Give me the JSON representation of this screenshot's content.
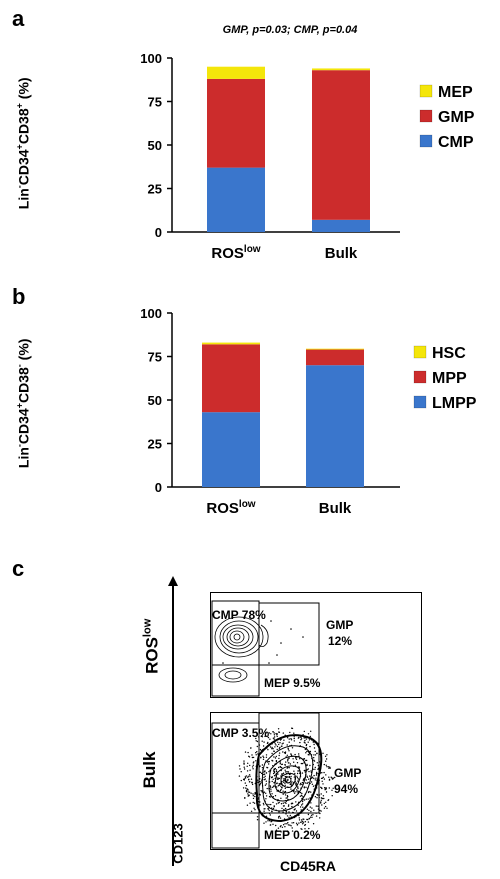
{
  "panel_a": {
    "letter": "a",
    "annotation": "GMP, p=0.03;  CMP, p=0.04",
    "ylabel_parts": [
      "Lin",
      "-",
      "CD34",
      "+",
      "CD38",
      "+",
      " (%)"
    ]
  },
  "panel_b": {
    "letter": "b",
    "ylabel_parts": [
      "Lin",
      "-",
      "CD34",
      "+",
      "CD38",
      "-",
      " (%)"
    ]
  },
  "panel_c": {
    "letter": "c",
    "row_labels": {
      "top_main": "ROS",
      "top_sup": "low",
      "bottom": "Bulk"
    },
    "top_plot": {
      "cmp": "CMP 78%",
      "gmp_line1": "GMP",
      "gmp_line2": "12%",
      "mep": "MEP 9.5%"
    },
    "bottom_plot": {
      "cmp": "CMP 3.5%",
      "gmp_line1": "GMP",
      "gmp_line2": "94%",
      "mep": "MEP 0.2%"
    },
    "y_axis_title": "CD123",
    "x_axis_title": "CD45RA"
  },
  "chart_data": [
    {
      "type": "bar",
      "stacked": true,
      "title": "",
      "annotation": "GMP, p=0.03;  CMP, p=0.04",
      "ylabel": "Lin-CD34+CD38+ (%)",
      "xlabel": "",
      "categories": [
        {
          "main": "ROS",
          "sup": "low"
        },
        {
          "main": "Bulk",
          "sup": ""
        }
      ],
      "ylim": [
        0,
        100
      ],
      "yticks": [
        "0",
        "25",
        "50",
        "75",
        "100"
      ],
      "series": [
        {
          "name": "CMP",
          "color": "#3a76cc",
          "values": [
            37,
            7
          ]
        },
        {
          "name": "GMP",
          "color": "#cc2c2c",
          "values": [
            51,
            86
          ]
        },
        {
          "name": "MEP",
          "color": "#f4e60a",
          "values": [
            7,
            1
          ]
        }
      ],
      "legend_order": [
        "MEP",
        "GMP",
        "CMP"
      ],
      "legend": "right",
      "grid": false
    },
    {
      "type": "bar",
      "stacked": true,
      "title": "",
      "ylabel": "Lin-CD34+CD38- (%)",
      "xlabel": "",
      "categories": [
        {
          "main": "ROS",
          "sup": "low"
        },
        {
          "main": "Bulk",
          "sup": ""
        }
      ],
      "ylim": [
        0,
        100
      ],
      "yticks": [
        "0",
        "25",
        "50",
        "75",
        "100"
      ],
      "series": [
        {
          "name": "LMPP",
          "color": "#3a76cc",
          "values": [
            43,
            70
          ]
        },
        {
          "name": "MPP",
          "color": "#cc2c2c",
          "values": [
            39,
            9
          ]
        },
        {
          "name": "HSC",
          "color": "#f4e60a",
          "values": [
            1,
            0.5
          ]
        }
      ],
      "legend_order": [
        "HSC",
        "MPP",
        "LMPP"
      ],
      "legend": "right",
      "grid": false
    }
  ]
}
